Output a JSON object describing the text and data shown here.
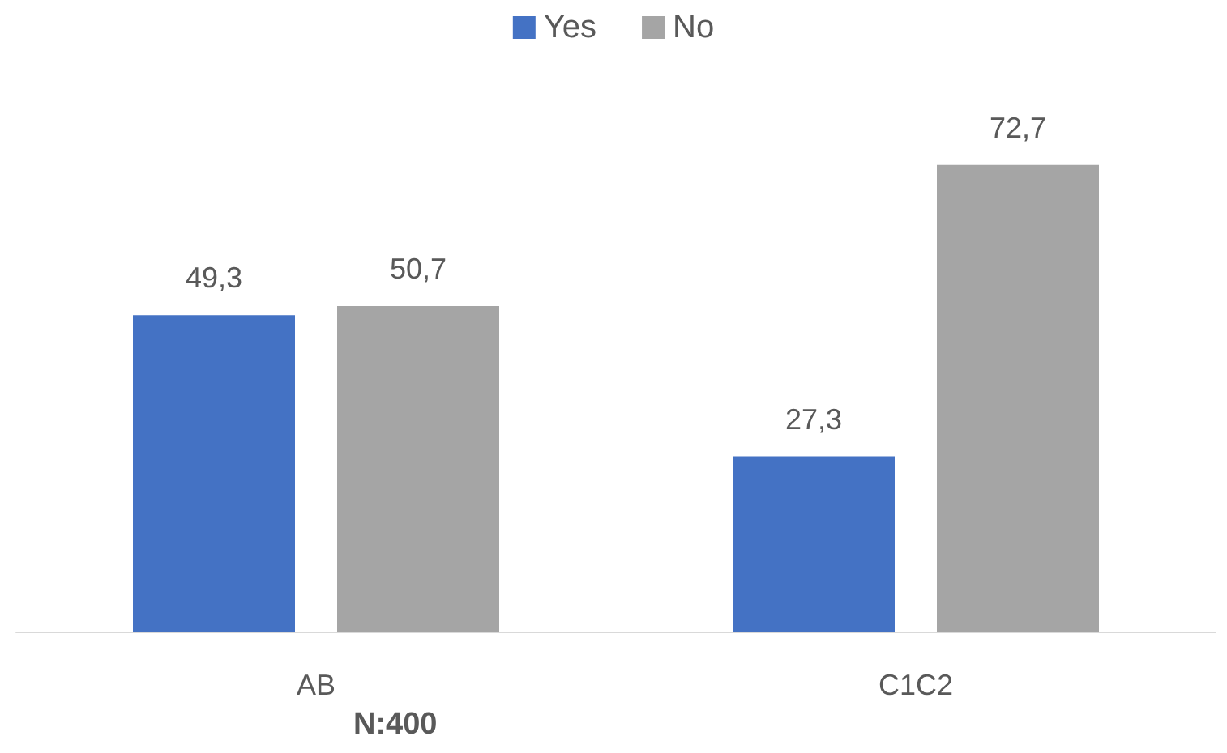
{
  "chart_data": {
    "type": "bar",
    "categories": [
      "AB",
      "C1C2"
    ],
    "series": [
      {
        "name": "Yes",
        "color": "#4472c4",
        "values": [
          49.3,
          27.3
        ],
        "value_labels": [
          "49,3",
          "27,3"
        ]
      },
      {
        "name": "No",
        "color": "#a5a5a5",
        "values": [
          50.7,
          72.7
        ],
        "value_labels": [
          "50,7",
          "72,7"
        ]
      }
    ],
    "legend": "top",
    "grid": false,
    "annotations": [
      "N:400"
    ]
  }
}
